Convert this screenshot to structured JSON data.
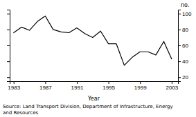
{
  "chart_data": {
    "type": "line",
    "xlabel": "Year",
    "ylabel": "no.",
    "annotations": [
      "Source: Land Transport Division, Department of Infrastructure, Energy\nand Resources"
    ],
    "x": [
      1983,
      1984,
      1985,
      1986,
      1987,
      1988,
      1989,
      1990,
      1991,
      1992,
      1993,
      1994,
      1995,
      1996,
      1997,
      1998,
      1999,
      2000,
      2001,
      2002,
      2003
    ],
    "values": [
      76,
      83,
      79,
      90,
      97,
      80,
      77,
      76,
      82,
      75,
      70,
      78,
      62,
      62,
      35,
      45,
      52,
      52,
      48,
      65,
      43
    ],
    "color": "#000000",
    "xlim": [
      1982.5,
      2003.8
    ],
    "xticks": [
      1983,
      1987,
      1991,
      1995,
      1999,
      2003
    ],
    "ylim": [
      15,
      105
    ],
    "yticks": [
      20,
      40,
      60,
      80,
      100
    ],
    "grid": false
  }
}
